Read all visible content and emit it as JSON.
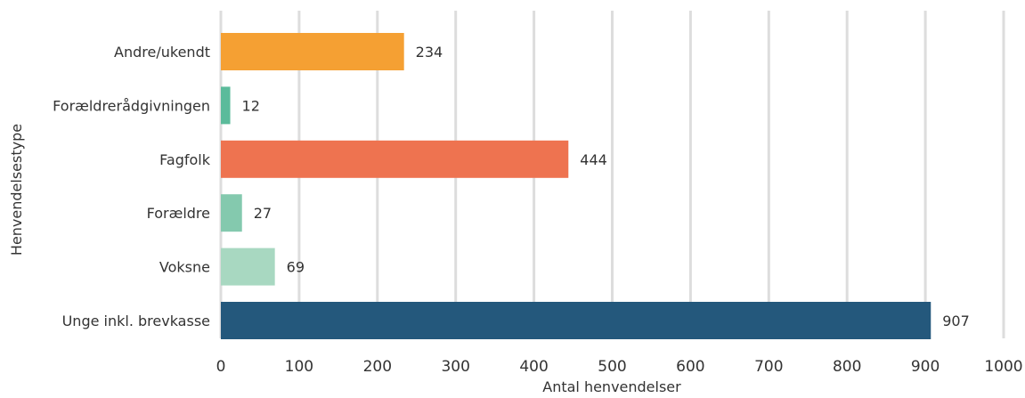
{
  "chart_data": {
    "type": "bar",
    "orientation": "horizontal",
    "title": "",
    "xlabel": "Antal henvendelser",
    "ylabel": "Henvendelsestype",
    "xlim": [
      0,
      1000
    ],
    "xticks": [
      0,
      100,
      200,
      300,
      400,
      500,
      600,
      700,
      800,
      900,
      1000
    ],
    "grid": "vertical",
    "legend": "none",
    "categories": [
      "Andre/ukendt",
      "Forældrerådgivningen",
      "Fagfolk",
      "Forældre",
      "Voksne",
      "Unge inkl. brevkasse"
    ],
    "values": [
      234,
      12,
      444,
      27,
      69,
      907
    ],
    "bar_colors": [
      "#F5A033",
      "#5BBB9B",
      "#EE7350",
      "#84C9AE",
      "#A8D8C1",
      "#24587C"
    ],
    "gridline_color": "#DDDDDD",
    "text_color": "#333333"
  }
}
